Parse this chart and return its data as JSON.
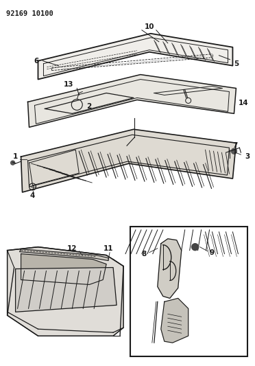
{
  "title_code": "92169 10100",
  "background_color": "#ffffff",
  "line_color": "#1a1a1a",
  "figsize": [
    3.72,
    5.33
  ],
  "dpi": 100
}
